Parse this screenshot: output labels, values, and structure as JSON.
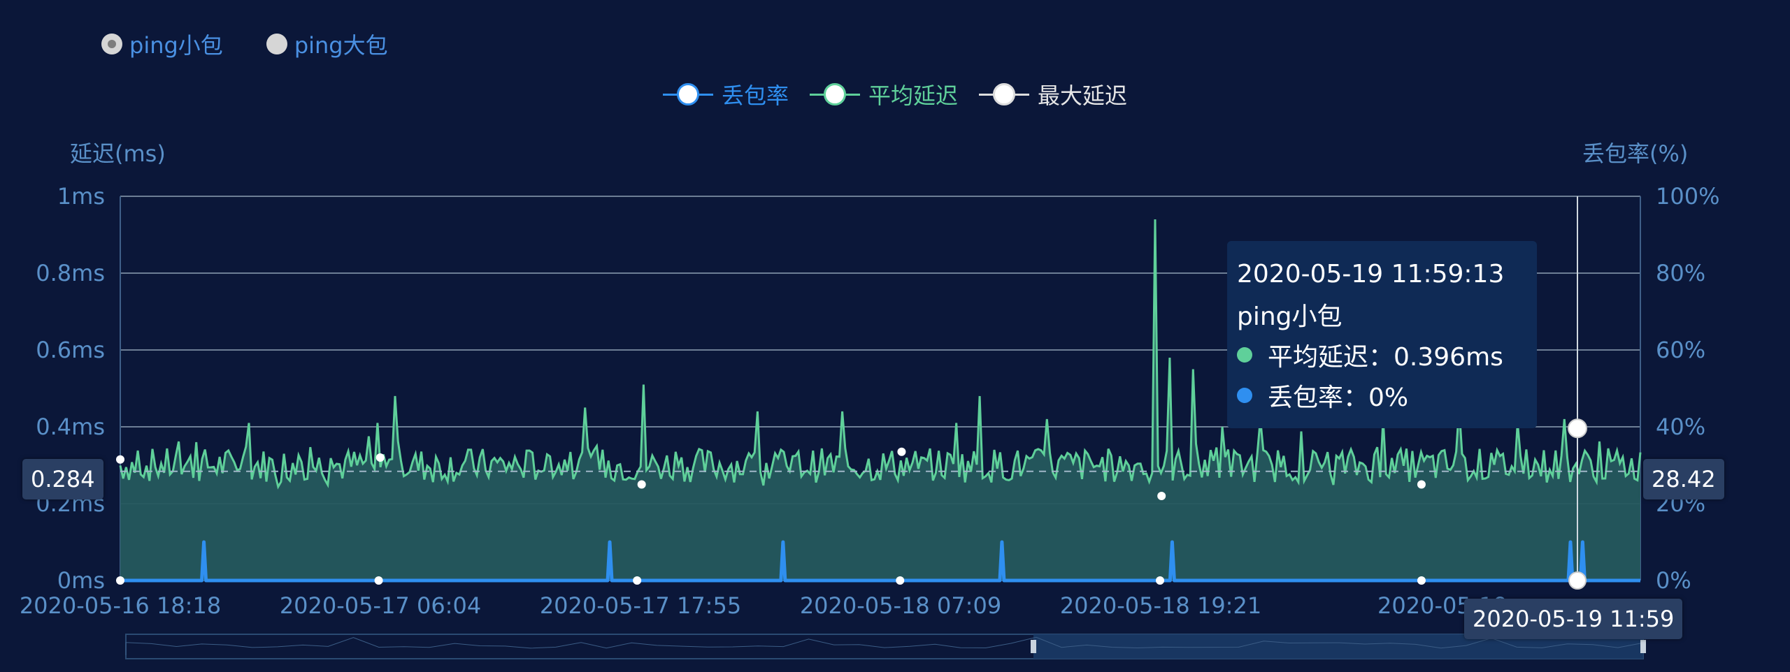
{
  "radio_group": [
    {
      "label": "ping小包",
      "checked": true
    },
    {
      "label": "ping大包",
      "checked": false
    }
  ],
  "legend": [
    {
      "label": "丢包率",
      "color": "#2f8ff0"
    },
    {
      "label": "平均延迟",
      "color": "#5fd09a"
    },
    {
      "label": "最大延迟",
      "color": "#ffffff"
    }
  ],
  "chart_data": {
    "type": "line",
    "y_left": {
      "name": "延迟(ms)",
      "ticks": [
        "0ms",
        "0.2ms",
        "0.4ms",
        "0.6ms",
        "0.8ms",
        "1ms"
      ],
      "range": [
        0,
        1
      ]
    },
    "y_right": {
      "name": "丢包率(%)",
      "ticks": [
        "0%",
        "20%",
        "40%",
        "60%",
        "80%",
        "100%"
      ],
      "range": [
        0,
        100
      ]
    },
    "x_ticks": [
      "2020-05-16 18:18",
      "2020-05-17 06:04",
      "2020-05-17 17:55",
      "2020-05-18 07:09",
      "2020-05-18 19:21",
      "2020-05-19"
    ],
    "grid": true,
    "series": [
      {
        "name": "平均延迟",
        "color": "#5fd09a",
        "area": true,
        "baseline": 0.3,
        "spikes": [
          [
            0.05,
            0.36
          ],
          [
            0.085,
            0.41
          ],
          [
            0.17,
            0.41
          ],
          [
            0.18,
            0.48
          ],
          [
            0.305,
            0.45
          ],
          [
            0.345,
            0.51
          ],
          [
            0.42,
            0.44
          ],
          [
            0.475,
            0.44
          ],
          [
            0.55,
            0.41
          ],
          [
            0.565,
            0.48
          ],
          [
            0.61,
            0.42
          ],
          [
            0.68,
            0.94
          ],
          [
            0.69,
            0.58
          ],
          [
            0.705,
            0.55
          ],
          [
            0.725,
            0.4
          ],
          [
            0.75,
            0.42
          ],
          [
            0.83,
            0.42
          ],
          [
            0.88,
            0.45
          ],
          [
            0.92,
            0.41
          ],
          [
            0.95,
            0.42
          ]
        ]
      },
      {
        "name": "丢包率",
        "color": "#2f8ff0",
        "spikes": [
          [
            0.055,
            10
          ],
          [
            0.322,
            10
          ],
          [
            0.436,
            10
          ],
          [
            0.58,
            10
          ],
          [
            0.692,
            10
          ],
          [
            0.954,
            10
          ],
          [
            0.962,
            10
          ]
        ]
      }
    ]
  },
  "tooltip": {
    "time": "2020-05-19 11:59:13",
    "group": "ping小包",
    "avg_label": "平均延迟",
    "avg_value": "：0.396ms",
    "loss_label": "丢包率",
    "loss_value": "：0%"
  },
  "axis_pointer": {
    "left_value": "0.284",
    "right_value": "28.42",
    "x_value": "2020-05-19 11:59"
  }
}
